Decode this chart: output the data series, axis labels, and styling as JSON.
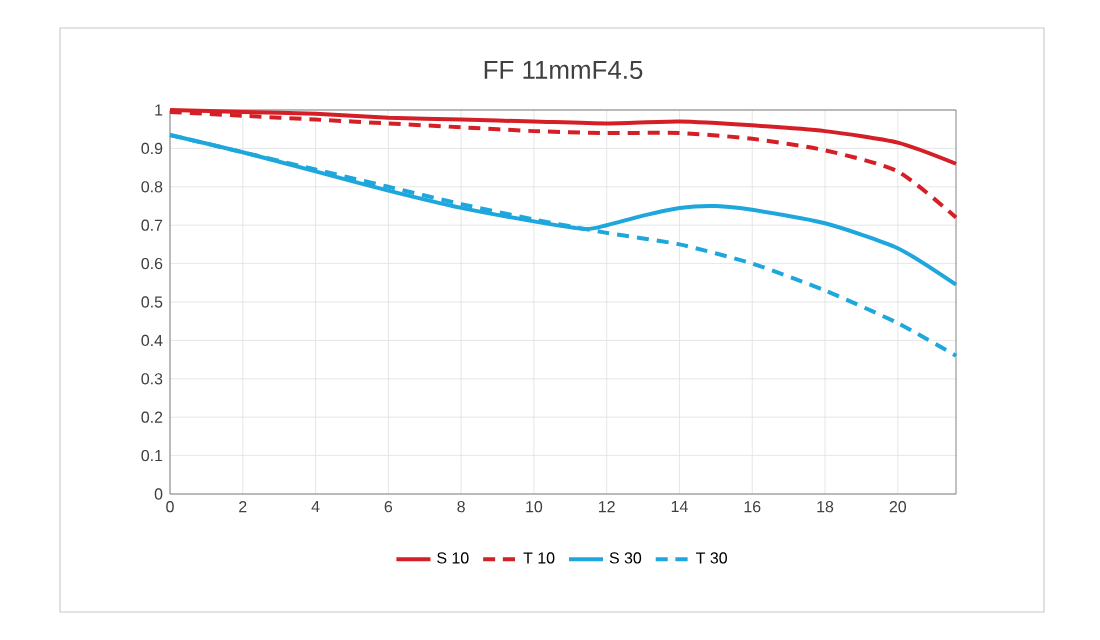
{
  "chart_data": {
    "type": "line",
    "title": "FF 11mmF4.5",
    "xlim": [
      0,
      21.6
    ],
    "xticks": [
      0,
      2,
      4,
      6,
      8,
      10,
      12,
      14,
      16,
      18,
      20
    ],
    "ylim": [
      0,
      1
    ],
    "yticks": [
      0,
      0.1,
      0.2,
      0.3,
      0.4,
      0.5,
      0.6,
      0.7,
      0.8,
      0.9,
      1
    ],
    "grid": true,
    "legend": "bottom",
    "marker": "none",
    "series": [
      {
        "name": "S 10",
        "color": "#d41f26",
        "line_style": "solid",
        "x": [
          0,
          2,
          4,
          6,
          8,
          10,
          12,
          14,
          16,
          18,
          20,
          21.6
        ],
        "values": [
          1.0,
          0.995,
          0.99,
          0.98,
          0.975,
          0.97,
          0.965,
          0.97,
          0.96,
          0.945,
          0.915,
          0.86
        ]
      },
      {
        "name": "T 10",
        "color": "#d41f26",
        "line_style": "dashed",
        "x": [
          0,
          2,
          4,
          6,
          8,
          10,
          12,
          14,
          16,
          18,
          20,
          21.6
        ],
        "values": [
          0.995,
          0.985,
          0.975,
          0.965,
          0.955,
          0.945,
          0.94,
          0.94,
          0.925,
          0.895,
          0.84,
          0.72
        ]
      },
      {
        "name": "S 30",
        "color": "#1ea7dc",
        "line_style": "solid",
        "x": [
          0,
          2,
          4,
          6,
          8,
          10,
          11.4,
          12,
          13,
          14,
          15,
          16,
          18,
          20,
          21.6
        ],
        "values": [
          0.935,
          0.89,
          0.84,
          0.79,
          0.745,
          0.71,
          0.69,
          0.7,
          0.725,
          0.745,
          0.75,
          0.74,
          0.705,
          0.64,
          0.545
        ]
      },
      {
        "name": "T 30",
        "color": "#1ea7dc",
        "line_style": "dashed",
        "x": [
          0,
          2,
          4,
          6,
          8,
          10,
          12,
          14,
          16,
          18,
          20,
          21.6
        ],
        "values": [
          0.935,
          0.89,
          0.845,
          0.8,
          0.755,
          0.715,
          0.68,
          0.65,
          0.6,
          0.53,
          0.445,
          0.36
        ]
      }
    ]
  }
}
